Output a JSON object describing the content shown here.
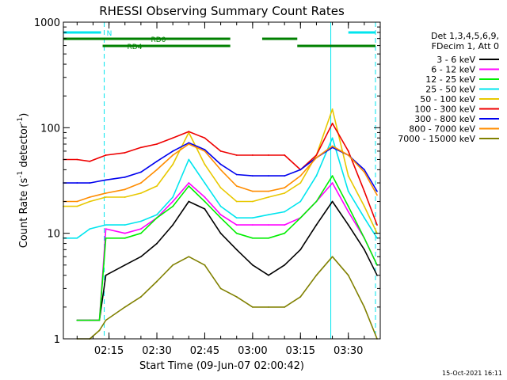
{
  "chart_data": {
    "type": "line",
    "title": "RHESSI Observing Summary Count Rates",
    "xlabel": "Start Time (09-Jun-07 02:00:42)",
    "ylabel_main": "Count Rate (s",
    "ylabel_sup": "-1",
    "ylabel_tail": " detector",
    "ylabel_sup2": "-1",
    "ylabel_end": ")",
    "y_scale": "log",
    "ylim": [
      1,
      1000
    ],
    "xlim": [
      "02:00:42",
      "03:40:00"
    ],
    "x_ticks": [
      "02:15",
      "02:30",
      "02:45",
      "03:00",
      "03:15",
      "03:30"
    ],
    "y_ticks": [
      "1",
      "10",
      "100",
      "1000"
    ],
    "legend_header": [
      "Det 1,3,4,5,6,9,",
      "FDecim 1, Att 0"
    ],
    "legend": [
      {
        "label": "3 - 6 keV",
        "color": "#000000"
      },
      {
        "label": "6 - 12 keV",
        "color": "#ff00ff"
      },
      {
        "label": "12 - 25 keV",
        "color": "#00ee00"
      },
      {
        "label": "25 - 50 keV",
        "color": "#00e5ee"
      },
      {
        "label": "50 - 100 keV",
        "color": "#e8c800"
      },
      {
        "label": "100 - 300 keV",
        "color": "#ee0000"
      },
      {
        "label": "300 - 800 keV",
        "color": "#0000ee"
      },
      {
        "label": "800 - 7000 keV",
        "color": "#ff8c00"
      },
      {
        "label": "7000 - 15000 keV",
        "color": "#808000"
      }
    ],
    "flags": [
      {
        "name": "N",
        "color": "#00e5ee",
        "segments": [
          [
            "02:00:42",
            "02:12:30"
          ],
          [
            "03:30:00",
            "03:38:30"
          ]
        ]
      },
      {
        "name": "RD0",
        "color": "#008000",
        "segments": [
          [
            "02:00:42",
            "02:53:00"
          ],
          [
            "03:03:00",
            "03:14:00"
          ]
        ]
      },
      {
        "name": "RD4",
        "color": "#008000",
        "segments": [
          [
            "02:13:00",
            "02:53:00"
          ],
          [
            "03:14:00",
            "03:38:30"
          ]
        ]
      }
    ],
    "markers": [
      {
        "time": "02:13:30",
        "style": "dashed"
      },
      {
        "time": "03:24:30",
        "style": "solid"
      },
      {
        "time": "03:38:30",
        "style": "dashed"
      }
    ],
    "series": [
      {
        "name": "3 - 6 keV",
        "times": [
          "02:05",
          "02:09",
          "02:12",
          "02:14",
          "02:20",
          "02:25",
          "02:30",
          "02:35",
          "02:40",
          "02:45",
          "02:50",
          "02:55",
          "03:00",
          "03:05",
          "03:10",
          "03:15",
          "03:20",
          "03:25",
          "03:30",
          "03:35",
          "03:39"
        ],
        "values": [
          1.5,
          1.5,
          1.5,
          4,
          5,
          6,
          8,
          12,
          20,
          17,
          10,
          7,
          5,
          4,
          5,
          7,
          12,
          20,
          12,
          7,
          4
        ]
      },
      {
        "name": "6 - 12 keV",
        "times": [
          "02:05",
          "02:09",
          "02:12",
          "02:14",
          "02:20",
          "02:25",
          "02:30",
          "02:35",
          "02:40",
          "02:45",
          "02:50",
          "02:55",
          "03:00",
          "03:05",
          "03:10",
          "03:15",
          "03:20",
          "03:25",
          "03:30",
          "03:35",
          "03:39"
        ],
        "values": [
          1.5,
          1.5,
          1.5,
          11,
          10,
          11,
          14,
          20,
          30,
          22,
          15,
          12,
          12,
          12,
          12,
          14,
          20,
          30,
          16,
          9,
          5
        ]
      },
      {
        "name": "12 - 25 keV",
        "times": [
          "02:05",
          "02:09",
          "02:12",
          "02:14",
          "02:20",
          "02:25",
          "02:30",
          "02:35",
          "02:40",
          "02:45",
          "02:50",
          "02:55",
          "03:00",
          "03:05",
          "03:10",
          "03:15",
          "03:20",
          "03:25",
          "03:30",
          "03:35",
          "03:39"
        ],
        "values": [
          1.5,
          1.5,
          1.5,
          9,
          9,
          10,
          14,
          18,
          28,
          20,
          14,
          10,
          9,
          9,
          10,
          14,
          20,
          35,
          18,
          9,
          5
        ]
      },
      {
        "name": "25 - 50 keV",
        "times": [
          "02:00:42",
          "02:05",
          "02:09",
          "02:14",
          "02:20",
          "02:25",
          "02:30",
          "02:35",
          "02:40",
          "02:45",
          "02:50",
          "02:55",
          "03:00",
          "03:05",
          "03:10",
          "03:15",
          "03:20",
          "03:25",
          "03:30",
          "03:35",
          "03:39"
        ],
        "values": [
          9,
          9,
          11,
          12,
          12,
          13,
          15,
          22,
          50,
          30,
          18,
          14,
          14,
          15,
          16,
          20,
          35,
          80,
          25,
          14,
          9
        ]
      },
      {
        "name": "50 - 100 keV",
        "times": [
          "02:00:42",
          "02:05",
          "02:09",
          "02:14",
          "02:20",
          "02:25",
          "02:30",
          "02:35",
          "02:40",
          "02:45",
          "02:50",
          "02:55",
          "03:00",
          "03:05",
          "03:10",
          "03:15",
          "03:20",
          "03:25",
          "03:30",
          "03:35",
          "03:39"
        ],
        "values": [
          18,
          18,
          20,
          22,
          22,
          24,
          28,
          45,
          90,
          45,
          27,
          20,
          20,
          22,
          24,
          30,
          55,
          150,
          35,
          18,
          10
        ]
      },
      {
        "name": "100 - 300 keV",
        "times": [
          "02:00:42",
          "02:05",
          "02:09",
          "02:14",
          "02:20",
          "02:25",
          "02:30",
          "02:35",
          "02:40",
          "02:45",
          "02:50",
          "02:55",
          "03:00",
          "03:05",
          "03:10",
          "03:15",
          "03:20",
          "03:25",
          "03:30",
          "03:35",
          "03:39"
        ],
        "values": [
          50,
          50,
          48,
          55,
          58,
          65,
          70,
          80,
          92,
          80,
          60,
          55,
          55,
          55,
          55,
          40,
          55,
          110,
          60,
          25,
          12
        ]
      },
      {
        "name": "300 - 800 keV",
        "times": [
          "02:00:42",
          "02:05",
          "02:09",
          "02:14",
          "02:20",
          "02:25",
          "02:30",
          "02:35",
          "02:40",
          "02:45",
          "02:50",
          "02:55",
          "03:00",
          "03:05",
          "03:10",
          "03:15",
          "03:20",
          "03:25",
          "03:30",
          "03:35",
          "03:39"
        ],
        "values": [
          30,
          30,
          30,
          32,
          34,
          38,
          48,
          60,
          72,
          62,
          45,
          36,
          35,
          35,
          35,
          40,
          52,
          65,
          55,
          40,
          25
        ]
      },
      {
        "name": "800 - 7000 keV",
        "times": [
          "02:00:42",
          "02:05",
          "02:09",
          "02:14",
          "02:20",
          "02:25",
          "02:30",
          "02:35",
          "02:40",
          "02:45",
          "02:50",
          "02:55",
          "03:00",
          "03:05",
          "03:10",
          "03:15",
          "03:20",
          "03:25",
          "03:30",
          "03:35",
          "03:39"
        ],
        "values": [
          20,
          20,
          22,
          24,
          26,
          30,
          40,
          55,
          70,
          60,
          40,
          28,
          25,
          25,
          27,
          35,
          52,
          67,
          55,
          38,
          23
        ]
      },
      {
        "name": "7000 - 15000 keV",
        "times": [
          "02:05",
          "02:09",
          "02:12",
          "02:14",
          "02:20",
          "02:25",
          "02:30",
          "02:35",
          "02:40",
          "02:45",
          "02:50",
          "02:55",
          "03:00",
          "03:05",
          "03:10",
          "03:15",
          "03:20",
          "03:25",
          "03:30",
          "03:35",
          "03:39"
        ],
        "values": [
          1,
          1,
          1.2,
          1.5,
          2,
          2.5,
          3.5,
          5,
          6,
          5,
          3,
          2.5,
          2,
          2,
          2,
          2.5,
          4,
          6,
          4,
          2,
          1
        ]
      }
    ]
  },
  "footer": {
    "timestamp": "15-Oct-2021 16:11"
  }
}
